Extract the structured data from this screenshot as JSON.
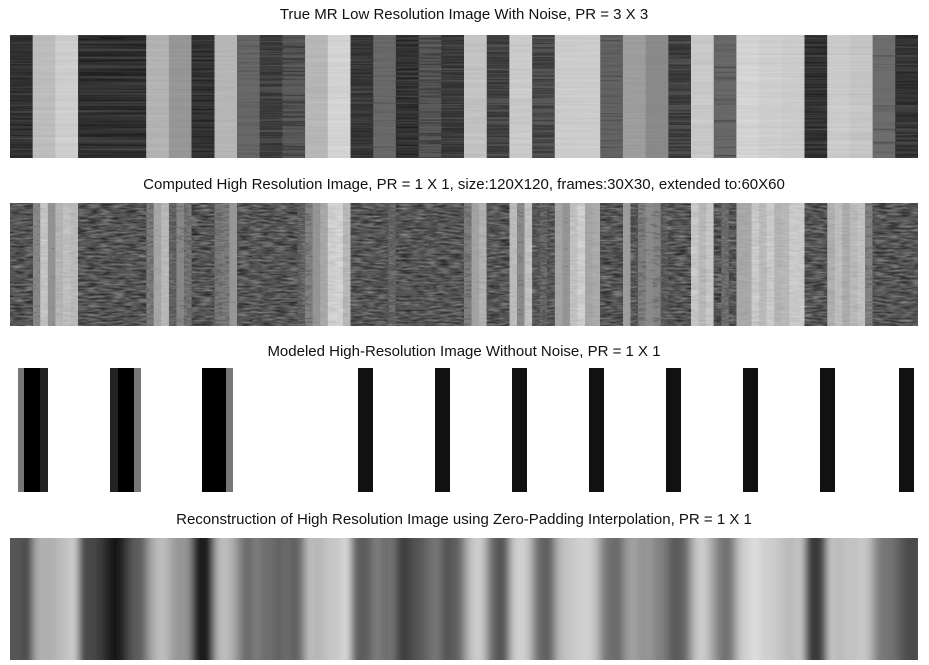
{
  "panels": [
    {
      "title": "True MR Low Resolution Image With Noise, PR = 3 X 3"
    },
    {
      "title": "Computed High Resolution Image, PR = 1 X 1, size:120X120, frames:30X30, extended to:60X60"
    },
    {
      "title": "Modeled High-Resolution Image Without Noise, PR = 1 X 1"
    },
    {
      "title": "Reconstruction of High Resolution Image using Zero-Padding Interpolation, PR = 1 X 1"
    }
  ]
}
